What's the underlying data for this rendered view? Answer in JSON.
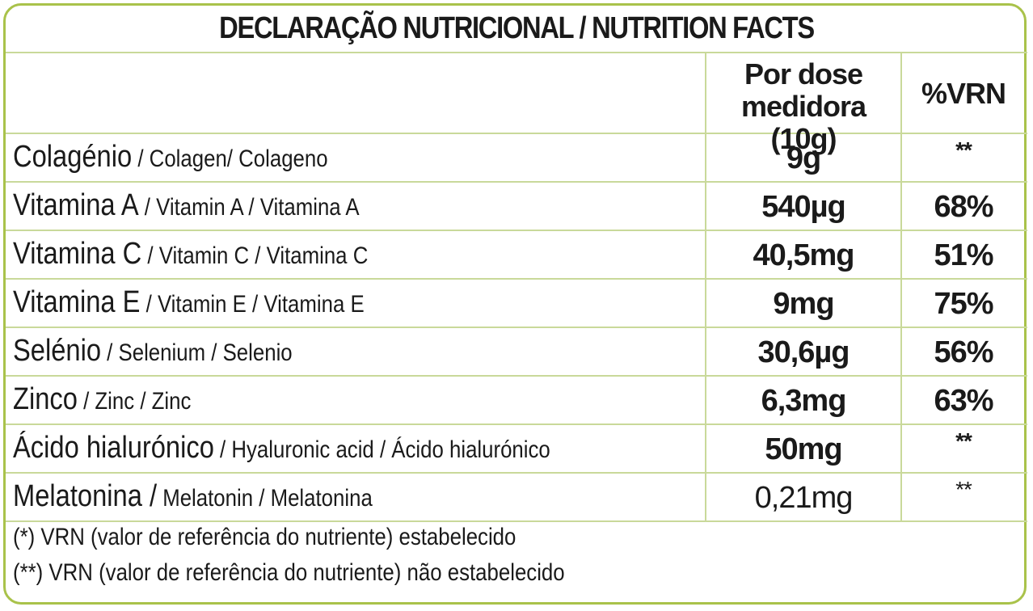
{
  "title": "DECLARAÇÃO NUTRICIONAL / NUTRITION FACTS",
  "header": {
    "per_dose_line1": "Por dose",
    "per_dose_line2": "medidora (10g)",
    "vrn": "%VRN"
  },
  "rows": [
    {
      "name_main": "Colagénio",
      "name_sub": " / Colagen/ Colageno",
      "amount": "9g",
      "vrn": "**"
    },
    {
      "name_main": "Vitamina A",
      "name_sub": " / Vitamin A / Vitamina A",
      "amount": "540µg",
      "vrn": "68%"
    },
    {
      "name_main": "Vitamina C",
      "name_sub": " / Vitamin C / Vitamina C",
      "amount": "40,5mg",
      "vrn": "51%"
    },
    {
      "name_main": "Vitamina E",
      "name_sub": " / Vitamin E / Vitamina E",
      "amount": "9mg",
      "vrn": "75%"
    },
    {
      "name_main": "Selénio",
      "name_sub": " / Selenium / Selenio",
      "amount": "30,6µg",
      "vrn": "56%"
    },
    {
      "name_main": "Zinco",
      "name_sub": " / Zinc / Zinc",
      "amount": "6,3mg",
      "vrn": "63%"
    },
    {
      "name_main": "Ácido hialurónico",
      "name_sub": " / Hyaluronic acid / Ácido hialurónico",
      "amount": "50mg",
      "vrn": "**"
    },
    {
      "name_main": "Melatonina /",
      "name_sub": " Melatonin / Melatonina",
      "amount": "0,21mg",
      "vrn": "**"
    }
  ],
  "footnotes": [
    "(*) VRN (valor de referência do nutriente) estabelecido",
    "(**) VRN (valor de referência do nutriente) não estabelecido"
  ],
  "colors": {
    "border": "#a9c24a",
    "grid": "#c9d99a",
    "text": "#1a1a1a"
  }
}
